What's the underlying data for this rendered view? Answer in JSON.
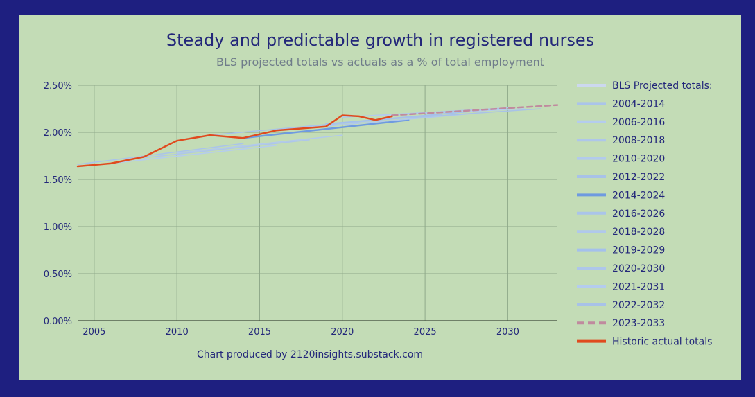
{
  "chart_data": {
    "type": "line",
    "title": "Steady and predictable growth in registered nurses",
    "subtitle": "BLS projected totals vs actuals as a % of total employment",
    "footer": "Chart produced by 2120insights.substack.com",
    "xlim": [
      2004,
      2033
    ],
    "ylim": [
      0,
      0.025
    ],
    "x_ticks": [
      2005,
      2010,
      2015,
      2020,
      2025,
      2030
    ],
    "x_tick_labels": [
      "2005",
      "2010",
      "2015",
      "2020",
      "2025",
      "2030"
    ],
    "y_ticks": [
      0,
      0.005,
      0.01,
      0.015,
      0.02,
      0.025
    ],
    "y_tick_labels": [
      "0.00%",
      "0.50%",
      "1.00%",
      "1.50%",
      "2.00%",
      "2.50%"
    ],
    "grid": true,
    "legend_header": "BLS Projected totals:",
    "series": [
      {
        "name": "2004-2014",
        "color": "#aac4ea",
        "dash": false,
        "width": 1.5,
        "points": [
          [
            2004,
            0.0166
          ],
          [
            2014,
            0.0188
          ]
        ]
      },
      {
        "name": "2006-2016",
        "color": "#b4ccee",
        "dash": false,
        "width": 1.5,
        "points": [
          [
            2006,
            0.0167
          ],
          [
            2016,
            0.0186
          ]
        ]
      },
      {
        "name": "2008-2018",
        "color": "#aec6ea",
        "dash": false,
        "width": 1.5,
        "points": [
          [
            2008,
            0.0173
          ],
          [
            2018,
            0.0192
          ]
        ]
      },
      {
        "name": "2010-2020",
        "color": "#b2caec",
        "dash": false,
        "width": 1.5,
        "points": [
          [
            2010,
            0.0178
          ],
          [
            2020,
            0.0197
          ]
        ]
      },
      {
        "name": "2012-2022",
        "color": "#a8c2e8",
        "dash": false,
        "width": 1.5,
        "points": [
          [
            2012,
            0.0197
          ],
          [
            2022,
            0.0213
          ]
        ]
      },
      {
        "name": "2014-2024",
        "color": "#6e9ae0",
        "dash": false,
        "width": 2.5,
        "points": [
          [
            2014,
            0.0194
          ],
          [
            2024,
            0.0213
          ]
        ]
      },
      {
        "name": "2016-2026",
        "color": "#aac4ea",
        "dash": false,
        "width": 1.5,
        "points": [
          [
            2016,
            0.0203
          ],
          [
            2026,
            0.0219
          ]
        ]
      },
      {
        "name": "2018-2028",
        "color": "#b0c8ec",
        "dash": false,
        "width": 1.5,
        "points": [
          [
            2018,
            0.0205
          ],
          [
            2028,
            0.022
          ]
        ]
      },
      {
        "name": "2019-2029",
        "color": "#a4c0ec",
        "dash": false,
        "width": 1.5,
        "points": [
          [
            2019,
            0.0209
          ],
          [
            2029,
            0.0224
          ]
        ]
      },
      {
        "name": "2020-2030",
        "color": "#aec6ea",
        "dash": false,
        "width": 1.5,
        "points": [
          [
            2020,
            0.0216
          ],
          [
            2030,
            0.0226
          ]
        ]
      },
      {
        "name": "2021-2031",
        "color": "#b4ccee",
        "dash": false,
        "width": 1.5,
        "points": [
          [
            2021,
            0.0217
          ],
          [
            2031,
            0.0225
          ]
        ]
      },
      {
        "name": "2022-2032",
        "color": "#a8c2e8",
        "dash": false,
        "width": 1.5,
        "points": [
          [
            2022,
            0.0213
          ],
          [
            2032,
            0.0225
          ]
        ]
      },
      {
        "name": "2023-2033",
        "color": "#c08a9e",
        "dash": true,
        "width": 2.5,
        "points": [
          [
            2023,
            0.0218
          ],
          [
            2033,
            0.0229
          ]
        ]
      },
      {
        "name": "Historic actual totals",
        "color": "#e04a1e",
        "dash": false,
        "width": 2.5,
        "points": [
          [
            2004,
            0.0164
          ],
          [
            2006,
            0.0167
          ],
          [
            2008,
            0.0174
          ],
          [
            2010,
            0.0191
          ],
          [
            2012,
            0.0197
          ],
          [
            2014,
            0.0194
          ],
          [
            2016,
            0.0202
          ],
          [
            2019,
            0.0206
          ],
          [
            2020,
            0.0218
          ],
          [
            2021,
            0.0217
          ],
          [
            2022,
            0.0213
          ],
          [
            2023,
            0.0217
          ]
        ]
      }
    ]
  }
}
